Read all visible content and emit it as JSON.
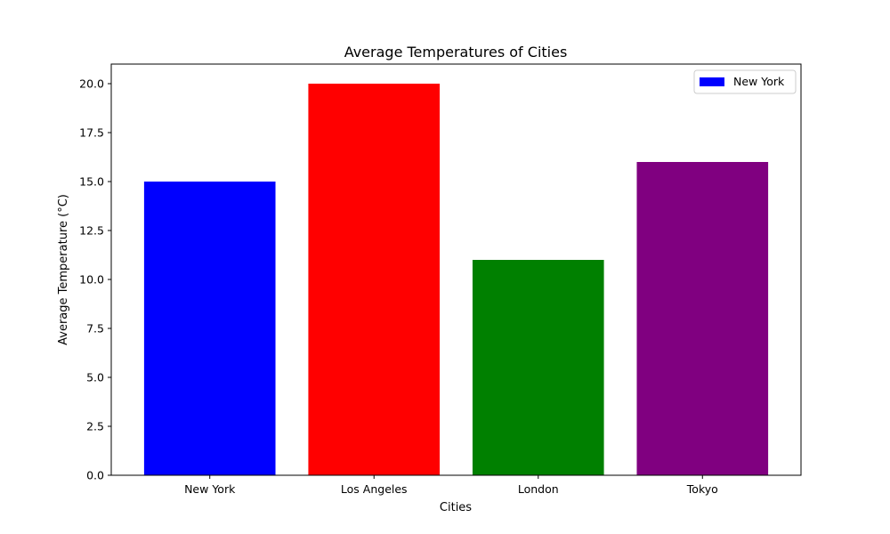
{
  "chart_data": {
    "type": "bar",
    "title": "Average Temperatures of Cities",
    "xlabel": "Cities",
    "ylabel": "Average Temperature (°C)",
    "categories": [
      "New York",
      "Los Angeles",
      "London",
      "Tokyo"
    ],
    "values": [
      15,
      20,
      11,
      16
    ],
    "colors": [
      "#0000ff",
      "#ff0000",
      "#008000",
      "#800080"
    ],
    "ylim": [
      0,
      21
    ],
    "yticks": [
      0.0,
      2.5,
      5.0,
      7.5,
      10.0,
      12.5,
      15.0,
      17.5,
      20.0
    ],
    "ytick_labels": [
      "0.0",
      "2.5",
      "5.0",
      "7.5",
      "10.0",
      "12.5",
      "15.0",
      "17.5",
      "20.0"
    ],
    "grid": false,
    "legend": {
      "placement": "top-right",
      "entries": [
        {
          "label": "New York",
          "color": "#0000ff"
        }
      ]
    }
  }
}
